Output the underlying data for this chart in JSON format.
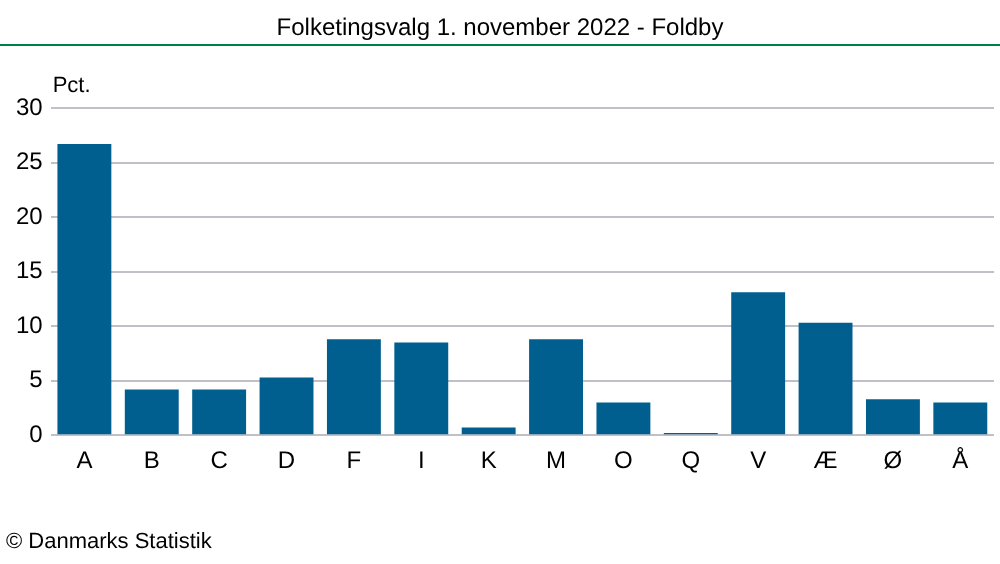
{
  "chart_data": {
    "type": "bar",
    "title": "Folketingsvalg 1. november 2022 - Foldby",
    "ylabel": "Pct.",
    "categories": [
      "A",
      "B",
      "C",
      "D",
      "F",
      "I",
      "K",
      "M",
      "O",
      "Q",
      "V",
      "Æ",
      "Ø",
      "Å"
    ],
    "values": [
      26.7,
      4.2,
      4.2,
      5.3,
      8.8,
      8.5,
      0.7,
      8.8,
      3.0,
      0.2,
      13.1,
      10.3,
      3.3,
      3.0
    ],
    "color": "#005f8f",
    "ylim": [
      0,
      30
    ],
    "yticks": [
      0,
      5,
      10,
      15,
      20,
      25,
      30
    ],
    "grid": "y",
    "legend": false,
    "annotations": [
      "© Danmarks Statistik"
    ]
  }
}
